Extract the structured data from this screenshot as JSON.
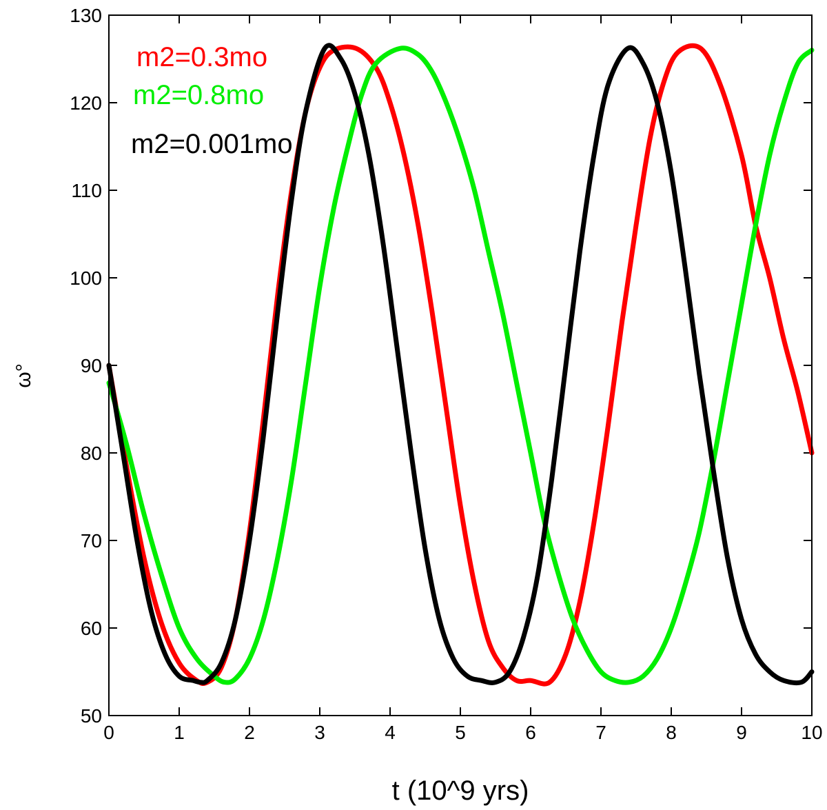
{
  "chart_data": {
    "type": "line",
    "title": "",
    "xlabel": "t  (10^9 yrs)",
    "ylabel": "ω°",
    "xlim": [
      0,
      10
    ],
    "ylim": [
      50,
      130
    ],
    "x_ticks": [
      0,
      1,
      2,
      3,
      4,
      5,
      6,
      7,
      8,
      9,
      10
    ],
    "y_ticks": [
      50,
      60,
      70,
      80,
      90,
      100,
      110,
      120,
      130
    ],
    "grid": false,
    "legend_position": "top-left",
    "series": [
      {
        "name": "m2=0.3mo",
        "color": "#ff0000",
        "x": [
          0,
          0.25,
          0.5,
          0.75,
          1.0,
          1.25,
          1.4,
          1.6,
          1.8,
          2.0,
          2.2,
          2.4,
          2.6,
          2.8,
          3.0,
          3.2,
          3.52,
          3.8,
          4.0,
          4.2,
          4.4,
          4.6,
          4.8,
          5.0,
          5.2,
          5.4,
          5.6,
          5.8,
          6.0,
          6.27,
          6.5,
          6.7,
          6.9,
          7.1,
          7.3,
          7.5,
          7.7,
          7.9,
          8.1,
          8.42,
          8.7,
          9.0,
          9.2,
          9.4,
          9.6,
          9.8,
          10.0
        ],
        "y": [
          90,
          78.5,
          68,
          60.5,
          56,
          54,
          53.8,
          55.5,
          61,
          71,
          84,
          98,
          110,
          119,
          124,
          126,
          126.2,
          124,
          120,
          114,
          106,
          96,
          85,
          74,
          65,
          58.5,
          55.5,
          54,
          54,
          53.8,
          57,
          63,
          72,
          83,
          95,
          106,
          116,
          122.5,
          125.8,
          126.2,
          122,
          114,
          106,
          100,
          93,
          87,
          80
        ]
      },
      {
        "name": "m2=0.8mo",
        "color": "#00ee00",
        "x": [
          0,
          0.25,
          0.5,
          0.75,
          1.0,
          1.25,
          1.5,
          1.65,
          1.8,
          2.0,
          2.2,
          2.4,
          2.6,
          2.8,
          3.0,
          3.2,
          3.4,
          3.6,
          3.8,
          4.14,
          4.4,
          4.6,
          4.8,
          5.0,
          5.2,
          5.4,
          5.6,
          5.8,
          6.0,
          6.2,
          6.4,
          6.6,
          6.8,
          7.0,
          7.2,
          7.4,
          7.6,
          7.8,
          8.0,
          8.2,
          8.4,
          8.6,
          8.8,
          9.0,
          9.2,
          9.4,
          9.6,
          9.8,
          10.0
        ],
        "y": [
          88,
          81,
          73,
          66,
          60,
          56.5,
          54.5,
          53.8,
          54.2,
          56.5,
          61,
          68,
          77,
          88,
          99,
          108,
          115,
          121,
          124.5,
          126.2,
          125.5,
          123.5,
          120,
          115.5,
          110,
          103,
          96,
          88,
          80,
          72,
          66,
          61,
          57.5,
          55,
          54,
          53.8,
          54.5,
          56.5,
          60,
          65,
          71,
          79,
          88,
          97,
          106,
          114,
          120,
          124.5,
          126
        ]
      },
      {
        "name": "m2=0.001mo",
        "color": "#000000",
        "x": [
          0,
          0.2,
          0.4,
          0.6,
          0.8,
          1.0,
          1.2,
          1.3,
          1.4,
          1.6,
          1.8,
          2.0,
          2.2,
          2.4,
          2.6,
          2.8,
          3.07,
          3.3,
          3.5,
          3.7,
          3.9,
          4.1,
          4.3,
          4.5,
          4.7,
          4.9,
          5.1,
          5.3,
          5.5,
          5.7,
          5.9,
          6.1,
          6.3,
          6.5,
          6.7,
          6.9,
          7.1,
          7.38,
          7.6,
          7.8,
          8.0,
          8.2,
          8.4,
          8.6,
          8.8,
          9.0,
          9.2,
          9.4,
          9.6,
          9.85,
          10.0
        ],
        "y": [
          90,
          80,
          70,
          62,
          57,
          54.5,
          54,
          53.8,
          54,
          56,
          61,
          70,
          82,
          96,
          109,
          119,
          126.2,
          125,
          121,
          114,
          104,
          92,
          80,
          69,
          61,
          56.5,
          54.5,
          54,
          53.8,
          55,
          59,
          66,
          77,
          90,
          103,
          114,
          122,
          126.2,
          124.5,
          120,
          112,
          101,
          89,
          78,
          68,
          61,
          57,
          55,
          54,
          53.8,
          55
        ]
      }
    ]
  }
}
